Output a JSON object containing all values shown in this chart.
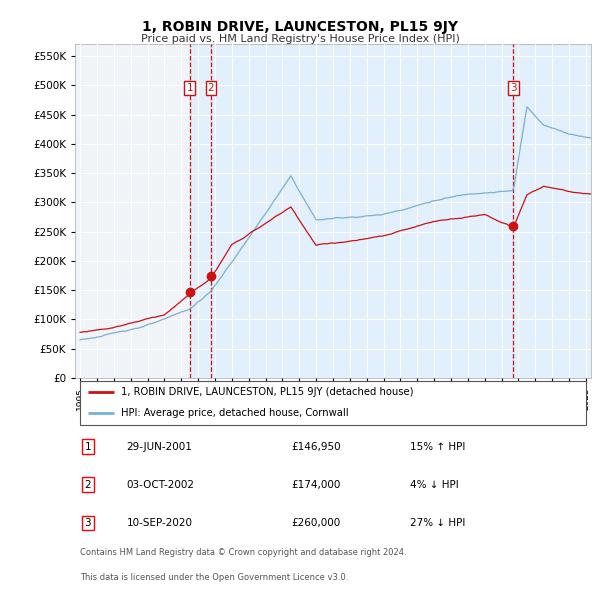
{
  "title": "1, ROBIN DRIVE, LAUNCESTON, PL15 9JY",
  "subtitle": "Price paid vs. HM Land Registry's House Price Index (HPI)",
  "legend_line1": "1, ROBIN DRIVE, LAUNCESTON, PL15 9JY (detached house)",
  "legend_line2": "HPI: Average price, detached house, Cornwall",
  "footer1": "Contains HM Land Registry data © Crown copyright and database right 2024.",
  "footer2": "This data is licensed under the Open Government Licence v3.0.",
  "transactions": [
    {
      "num": 1,
      "date": "29-JUN-2001",
      "price": "£146,950",
      "change": "15% ↑ HPI",
      "year_x": 2001.5
    },
    {
      "num": 2,
      "date": "03-OCT-2002",
      "price": "£174,000",
      "change": "4% ↓ HPI",
      "year_x": 2002.75
    },
    {
      "num": 3,
      "date": "10-SEP-2020",
      "price": "£260,000",
      "change": "27% ↓ HPI",
      "year_x": 2020.7
    }
  ],
  "marker_prices": [
    146950,
    174000,
    260000
  ],
  "hpi_color": "#7ab0d4",
  "price_color": "#cc1111",
  "vline_color": "#cc1111",
  "shade_color": "#ddeeff",
  "ylim": [
    0,
    570000
  ],
  "yticks": [
    0,
    50000,
    100000,
    150000,
    200000,
    250000,
    300000,
    350000,
    400000,
    450000,
    500000,
    550000
  ],
  "xlim_start": 1994.7,
  "xlim_end": 2025.3,
  "bg_color": "#f0f4f8"
}
